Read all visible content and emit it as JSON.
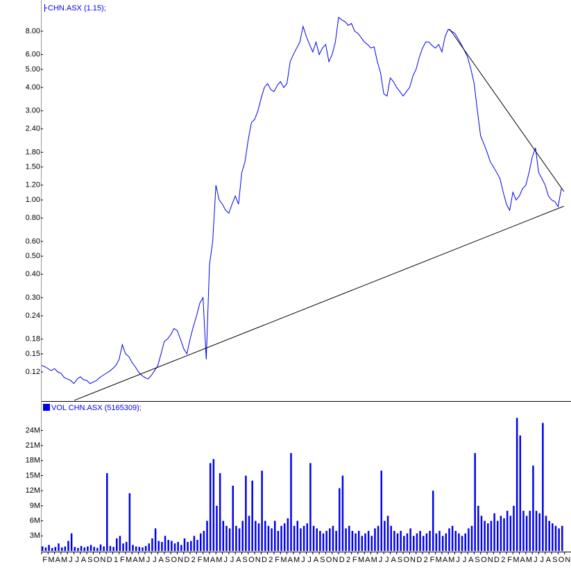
{
  "chart_data": {
    "type": "line",
    "ylog": true,
    "x": [
      0,
      0.5,
      1,
      1.5,
      2,
      2.5,
      3,
      3.5,
      4,
      4.5,
      5,
      5.5,
      6,
      6.5,
      7,
      7.5,
      8,
      8.5,
      9,
      9.5,
      10,
      10.5,
      11,
      11.5,
      12,
      12.5,
      13,
      13.5,
      14,
      14.5,
      15,
      15.5,
      16,
      16.5,
      17,
      17.5,
      18,
      18.5,
      19,
      19.5,
      20,
      20.5,
      21,
      21.5,
      22,
      22.5,
      23,
      23.5,
      24,
      24.5,
      25,
      25.5,
      26,
      26.5,
      27,
      27.5,
      28,
      28.5,
      29,
      29.5,
      30,
      30.5,
      31,
      31.5,
      32,
      32.5,
      33,
      33.5,
      34,
      34.5,
      35,
      35.5,
      36,
      36.5,
      37,
      37.5,
      38,
      38.5,
      39,
      39.5,
      40,
      40.5,
      41,
      41.5,
      42,
      42.5,
      43,
      43.5,
      44,
      44.5,
      45,
      45.5,
      46,
      46.5,
      47,
      47.5,
      48,
      48.5,
      49,
      49.5,
      50,
      50.5,
      51,
      51.5,
      52,
      52.5,
      53,
      53.5,
      54,
      54.5,
      55,
      55.5,
      56,
      56.5,
      57,
      57.5,
      58,
      58.5,
      59,
      59.5,
      60,
      60.5,
      61,
      61.5,
      62,
      62.5,
      63,
      63.5,
      64,
      64.5,
      65,
      65.5,
      66,
      66.5,
      67,
      67.5,
      68,
      68.5,
      69,
      69.5,
      70,
      70.5,
      71,
      71.5,
      72,
      72.5,
      73,
      73.5,
      74,
      74.5,
      75,
      75.5,
      76,
      76.5,
      77,
      77.5,
      78,
      78.5,
      79,
      79.5,
      80,
      80.5
    ],
    "xlim": [
      0,
      82
    ],
    "xticks": [
      {
        "value": 0,
        "label": "F"
      },
      {
        "value": 1,
        "label": "M"
      },
      {
        "value": 2,
        "label": "A"
      },
      {
        "value": 3,
        "label": "M"
      },
      {
        "value": 4,
        "label": "J"
      },
      {
        "value": 5,
        "label": "J"
      },
      {
        "value": 6,
        "label": "A"
      },
      {
        "value": 7,
        "label": "S"
      },
      {
        "value": 8,
        "label": "O"
      },
      {
        "value": 9,
        "label": "N"
      },
      {
        "value": 10,
        "label": "D"
      },
      {
        "value": 11,
        "label": "1"
      },
      {
        "value": 12,
        "label": "F"
      },
      {
        "value": 13,
        "label": "M"
      },
      {
        "value": 14,
        "label": "A"
      },
      {
        "value": 15,
        "label": "M"
      },
      {
        "value": 16,
        "label": "J"
      },
      {
        "value": 17,
        "label": "J"
      },
      {
        "value": 18,
        "label": "A"
      },
      {
        "value": 19,
        "label": "S"
      },
      {
        "value": 20,
        "label": "O"
      },
      {
        "value": 21,
        "label": "N"
      },
      {
        "value": 22,
        "label": "D"
      },
      {
        "value": 23,
        "label": "2"
      },
      {
        "value": 24,
        "label": "F"
      },
      {
        "value": 25,
        "label": "M"
      },
      {
        "value": 26,
        "label": "A"
      },
      {
        "value": 27,
        "label": "M"
      },
      {
        "value": 28,
        "label": "J"
      },
      {
        "value": 29,
        "label": "J"
      },
      {
        "value": 30,
        "label": "A"
      },
      {
        "value": 31,
        "label": "S"
      },
      {
        "value": 32,
        "label": "O"
      },
      {
        "value": 33,
        "label": "N"
      },
      {
        "value": 34,
        "label": "D"
      },
      {
        "value": 35,
        "label": "2"
      },
      {
        "value": 36,
        "label": "F"
      },
      {
        "value": 37,
        "label": "M"
      },
      {
        "value": 38,
        "label": "A"
      },
      {
        "value": 39,
        "label": "M"
      },
      {
        "value": 40,
        "label": "J"
      },
      {
        "value": 41,
        "label": "J"
      },
      {
        "value": 42,
        "label": "A"
      },
      {
        "value": 43,
        "label": "S"
      },
      {
        "value": 44,
        "label": "O"
      },
      {
        "value": 45,
        "label": "N"
      },
      {
        "value": 46,
        "label": "D"
      },
      {
        "value": 47,
        "label": "2"
      },
      {
        "value": 48,
        "label": "F"
      },
      {
        "value": 49,
        "label": "M"
      },
      {
        "value": 50,
        "label": "A"
      },
      {
        "value": 51,
        "label": "M"
      },
      {
        "value": 52,
        "label": "J"
      },
      {
        "value": 53,
        "label": "J"
      },
      {
        "value": 54,
        "label": "A"
      },
      {
        "value": 55,
        "label": "S"
      },
      {
        "value": 56,
        "label": "O"
      },
      {
        "value": 57,
        "label": "N"
      },
      {
        "value": 58,
        "label": "D"
      },
      {
        "value": 59,
        "label": "2"
      },
      {
        "value": 60,
        "label": "F"
      },
      {
        "value": 61,
        "label": "M"
      },
      {
        "value": 62,
        "label": "A"
      },
      {
        "value": 63,
        "label": "M"
      },
      {
        "value": 64,
        "label": "J"
      },
      {
        "value": 65,
        "label": "J"
      },
      {
        "value": 66,
        "label": "A"
      },
      {
        "value": 67,
        "label": "S"
      },
      {
        "value": 68,
        "label": "O"
      },
      {
        "value": 69,
        "label": "N"
      },
      {
        "value": 70,
        "label": "D"
      },
      {
        "value": 71,
        "label": "2"
      },
      {
        "value": 72,
        "label": "F"
      },
      {
        "value": 73,
        "label": "M"
      },
      {
        "value": 74,
        "label": "A"
      },
      {
        "value": 75,
        "label": "M"
      },
      {
        "value": 76,
        "label": "J"
      },
      {
        "value": 77,
        "label": "J"
      },
      {
        "value": 78,
        "label": "A"
      },
      {
        "value": 79,
        "label": "S"
      },
      {
        "value": 80,
        "label": "O"
      },
      {
        "value": 81,
        "label": "N"
      }
    ],
    "ylim": [
      0.0838,
      11.76
    ],
    "yticks": [
      0.12,
      0.15,
      0.18,
      0.24,
      {
        "value": 0.3,
        "label": "0.30"
      },
      {
        "value": 0.4,
        "label": "0.40"
      },
      {
        "value": 0.5,
        "label": "0.50"
      },
      {
        "value": 0.6,
        "label": "0.60"
      },
      {
        "value": 0.8,
        "label": "0.80"
      },
      {
        "value": 1,
        "label": "1.00"
      },
      {
        "value": 1.2,
        "label": "1.20"
      },
      {
        "value": 1.5,
        "label": "1.50"
      },
      {
        "value": 1.8,
        "label": "1.80"
      },
      {
        "value": 2.4,
        "label": "2.40"
      },
      {
        "value": 3,
        "label": "3.00"
      },
      {
        "value": 4,
        "label": "4.00"
      },
      {
        "value": 5,
        "label": "5.00"
      },
      {
        "value": 6,
        "label": "6.00"
      },
      {
        "value": 8,
        "label": "8.00"
      }
    ],
    "y2lim": [
      0,
      29300000
    ],
    "y2ticks": [
      {
        "value": 3000000,
        "label": "3M"
      },
      {
        "value": 6000000,
        "label": "6M"
      },
      {
        "value": 9000000,
        "label": "9M"
      },
      {
        "value": 12000000,
        "label": "12M"
      },
      {
        "value": 15000000,
        "label": "15M"
      },
      {
        "value": 18000000,
        "label": "18M"
      },
      {
        "value": 21000000,
        "label": "21M"
      },
      {
        "value": 24000000,
        "label": "24M"
      }
    ],
    "series": [
      {
        "name": "CHN.ASX (1.15);",
        "color": "#0000ee",
        "type": "line",
        "values": [
          0.13,
          0.128,
          0.125,
          0.122,
          0.125,
          0.12,
          0.118,
          0.112,
          0.11,
          0.108,
          0.104,
          0.11,
          0.113,
          0.109,
          0.108,
          0.104,
          0.106,
          0.108,
          0.112,
          0.115,
          0.118,
          0.121,
          0.125,
          0.13,
          0.14,
          0.168,
          0.15,
          0.145,
          0.135,
          0.128,
          0.12,
          0.115,
          0.112,
          0.11,
          0.115,
          0.122,
          0.13,
          0.15,
          0.175,
          0.18,
          0.19,
          0.205,
          0.2,
          0.18,
          0.16,
          0.15,
          0.18,
          0.21,
          0.24,
          0.28,
          0.3,
          0.14,
          0.45,
          0.6,
          1.2,
          1.0,
          0.95,
          0.88,
          0.85,
          0.95,
          1.05,
          0.95,
          1.4,
          1.6,
          2.1,
          2.6,
          2.7,
          3.0,
          3.5,
          4.0,
          4.2,
          3.9,
          3.8,
          4.1,
          4.3,
          4.0,
          4.2,
          5.5,
          6.0,
          6.5,
          7.0,
          8.5,
          7.5,
          6.8,
          6.2,
          7.0,
          6.0,
          6.5,
          6.8,
          5.5,
          6.0,
          7.0,
          9.5,
          9.2,
          9.0,
          8.6,
          8.8,
          8.0,
          7.8,
          7.4,
          7.0,
          6.8,
          6.5,
          6.6,
          5.5,
          4.8,
          3.7,
          3.6,
          4.5,
          4.3,
          4.0,
          3.8,
          3.6,
          3.8,
          4.0,
          4.6,
          5.0,
          5.8,
          6.5,
          7.0,
          7.0,
          6.7,
          6.5,
          6.8,
          6.2,
          7.5,
          8.2,
          8.0,
          7.8,
          7.3,
          6.8,
          6.3,
          5.8,
          5.0,
          4.2,
          3.0,
          2.2,
          2.0,
          1.8,
          1.6,
          1.5,
          1.4,
          1.3,
          1.1,
          0.95,
          0.88,
          1.1,
          1.0,
          1.05,
          1.15,
          1.2,
          1.4,
          1.7,
          1.9,
          1.4,
          1.3,
          1.2,
          1.05,
          1.0,
          0.98,
          0.92,
          1.15
        ]
      },
      {
        "name": "VOL CHN.ASX (5165309);",
        "color": "#0000ee",
        "type": "bar",
        "axis": "y2",
        "values": [
          900000,
          700000,
          1200000,
          600000,
          800000,
          1500000,
          700000,
          900000,
          2000000,
          3500000,
          800000,
          600000,
          1000000,
          700000,
          900000,
          1200000,
          800000,
          600000,
          1300000,
          900000,
          15500000,
          1000000,
          800000,
          2500000,
          3000000,
          1500000,
          1800000,
          11500000,
          1200000,
          900000,
          800000,
          700000,
          1000000,
          1500000,
          2500000,
          4500000,
          2000000,
          1800000,
          3000000,
          2200000,
          2000000,
          1500000,
          1800000,
          1200000,
          2500000,
          1800000,
          2000000,
          3000000,
          2200000,
          3500000,
          4000000,
          6000000,
          17500000,
          18300000,
          9000000,
          15500000,
          6000000,
          5000000,
          4500000,
          13000000,
          5000000,
          4500000,
          6000000,
          15000000,
          7000000,
          14000000,
          6000000,
          5500000,
          16000000,
          6000000,
          5000000,
          4500000,
          6000000,
          4000000,
          5000000,
          5500000,
          6500000,
          19500000,
          5000000,
          6000000,
          4500000,
          5000000,
          5500000,
          17500000,
          5000000,
          4500000,
          4000000,
          3500000,
          4000000,
          4500000,
          5000000,
          4000000,
          12500000,
          15000000,
          4500000,
          5000000,
          4000000,
          3500000,
          4000000,
          3000000,
          3500000,
          4000000,
          3000000,
          4500000,
          5000000,
          16000000,
          6000000,
          7000000,
          5000000,
          4000000,
          3500000,
          4000000,
          3000000,
          3500000,
          4500000,
          3000000,
          3500000,
          4000000,
          3000000,
          3500000,
          4000000,
          12000000,
          3500000,
          4000000,
          3000000,
          3500000,
          4500000,
          5000000,
          4000000,
          3500000,
          3000000,
          3500000,
          4500000,
          5000000,
          19500000,
          9000000,
          7000000,
          6000000,
          5500000,
          6000000,
          7500000,
          6000000,
          7000000,
          6500000,
          8000000,
          7000000,
          9000000,
          26500000,
          23000000,
          8000000,
          7000000,
          8000000,
          17000000,
          8000000,
          7500000,
          25500000,
          7000000,
          6000000,
          5500000,
          5000000,
          4500000,
          5000000
        ]
      }
    ],
    "trendlines": [
      {
        "x": [
          5.05,
          80.9
        ],
        "y": [
          0.0845,
          0.926
        ],
        "color": "#000000"
      },
      {
        "x": [
          63.2,
          80.9
        ],
        "y": [
          8.21,
          1.11
        ],
        "color": "#000000"
      }
    ]
  }
}
